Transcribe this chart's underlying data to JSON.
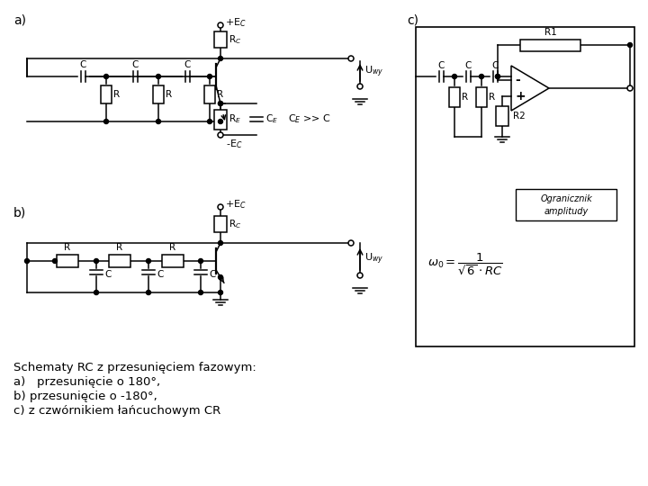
{
  "background_color": "#ffffff",
  "caption_lines": [
    "Schematy RC z przesunięciem fazowym:",
    "a)   przesunięcie o 180°,",
    "b) przesunięcie o -180°,",
    "c) z czwórnikiem łańcuchowym CR"
  ],
  "font_size_caption": 9.5,
  "label_a": "a)",
  "label_b": "b)",
  "label_c": "c)"
}
